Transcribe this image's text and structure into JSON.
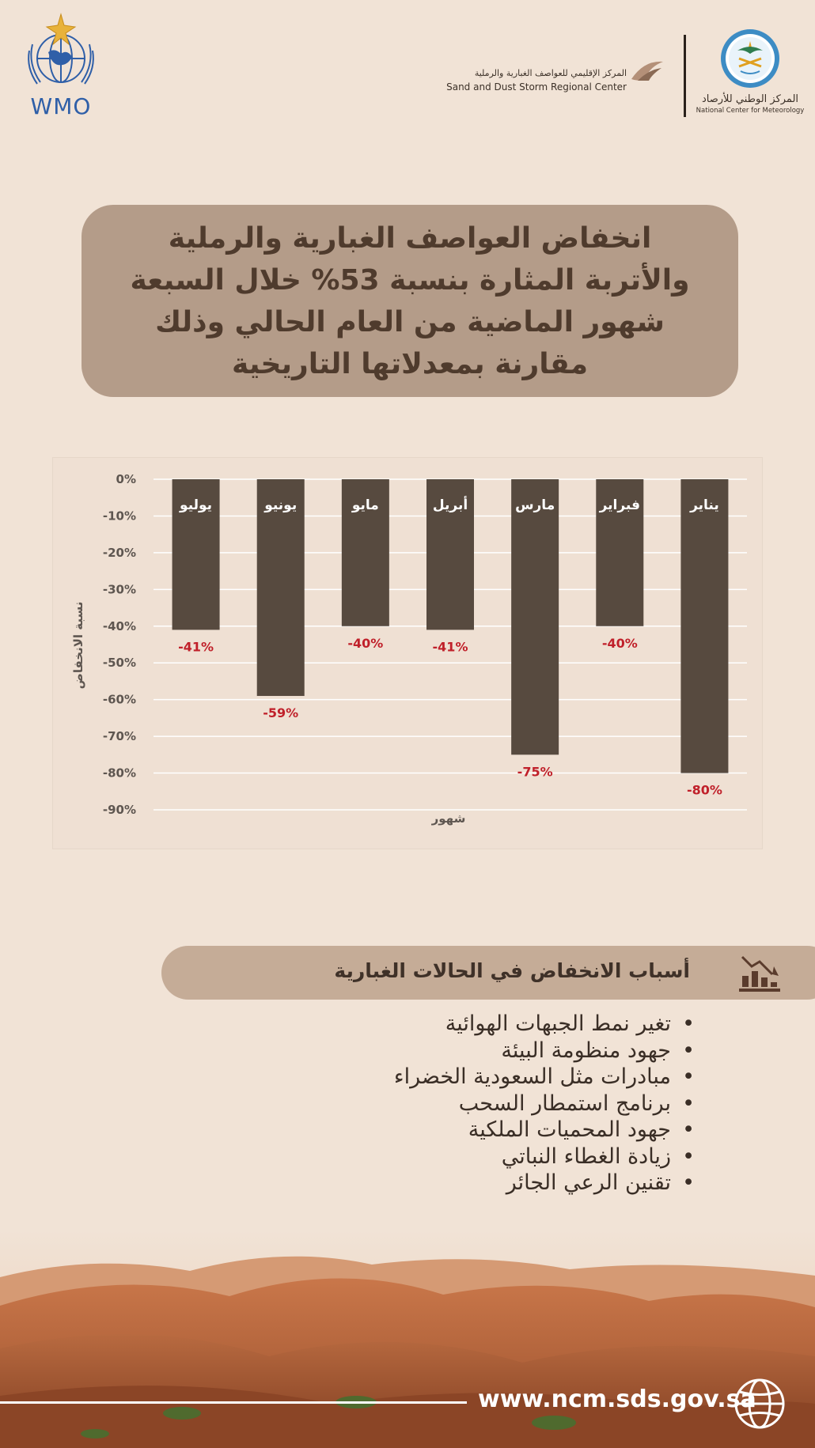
{
  "header": {
    "wmo_label": "WMO",
    "sds_center_ar": "المركز الإقليمي للعواصف الغبارية والرملية",
    "sds_center_en": "Sand and Dust Storm Regional Center",
    "ncm_ar": "المركز الوطني للأرصاد",
    "ncm_en": "National Center for Meteorology"
  },
  "title": "انخفاض العواصف الغبارية والرملية والأتربة المثارة بنسبة 53% خلال السبعة شهور الماضية من العام الحالي وذلك مقارنة بمعدلاتها التاريخية",
  "chart_data": {
    "type": "bar",
    "categories": [
      "يناير",
      "فبراير",
      "مارس",
      "أبريل",
      "مايو",
      "يونيو",
      "يوليو"
    ],
    "values": [
      -80,
      -40,
      -75,
      -41,
      -40,
      -59,
      -41
    ],
    "value_labels": [
      "-80%",
      "-40%",
      "-75%",
      "-41%",
      "-40%",
      "-59%",
      "-41%"
    ],
    "category_order": "right-to-left",
    "xlabel": "شهور",
    "ylabel": "نسبة الانخفاض",
    "ylim": [
      -90,
      0
    ],
    "yticks": [
      0,
      -10,
      -20,
      -30,
      -40,
      -50,
      -60,
      -70,
      -80,
      -90
    ],
    "ytick_labels": [
      "0%",
      "-10%",
      "-20%",
      "-30%",
      "-40%",
      "-50%",
      "-60%",
      "-70%",
      "-80%",
      "-90%"
    ],
    "grid": true,
    "colors": {
      "bar": "#574a3f",
      "data_label": "#c0202a",
      "grid": "#ffffff"
    }
  },
  "causes": {
    "title": "أسباب الانخفاض في الحالات الغبارية",
    "items": [
      "تغير نمط الجبهات الهوائية",
      "جهود منظومة البيئة",
      "مبادرات مثل السعودية الخضراء",
      "برنامج استمطار السحب",
      "جهود المحميات الملكية",
      "زيادة الغطاء النباتي",
      "تقنين الرعي الجائر"
    ]
  },
  "footer": {
    "url": "www.ncm.sds.gov.sa"
  },
  "icons": [
    "wmo-logo",
    "sds-center-logo",
    "ncm-logo",
    "decline-chart-icon",
    "globe-icon"
  ]
}
